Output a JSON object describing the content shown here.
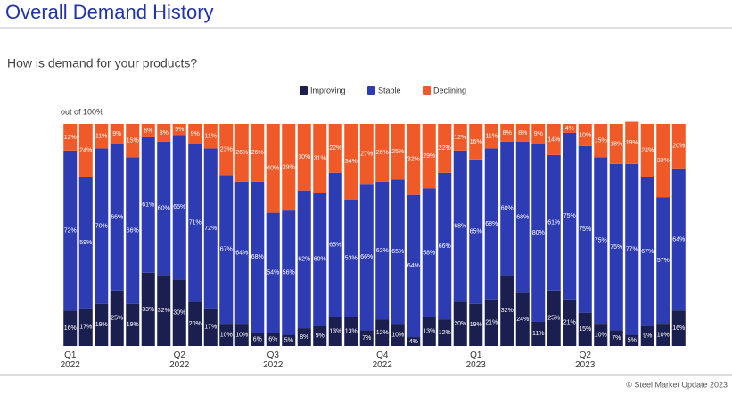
{
  "title": "Overall Demand History",
  "footer": "© Steel Market Update 2023",
  "chart_data": {
    "type": "stacked_bar",
    "title": "How is demand for your products?",
    "subtitle": "out of 100%",
    "ylim": [
      0,
      100
    ],
    "legend": "top",
    "categories": [
      "Q1\n2022",
      null,
      null,
      null,
      null,
      null,
      null,
      "Q2\n2022",
      null,
      null,
      null,
      null,
      null,
      "Q3\n2022",
      null,
      null,
      null,
      null,
      null,
      null,
      "Q4\n2022",
      null,
      null,
      null,
      null,
      null,
      "Q1\n2023",
      null,
      null,
      null,
      null,
      null,
      null,
      "Q2\n2023",
      null,
      null,
      null,
      null,
      null,
      null
    ],
    "series": [
      {
        "name": "Improving",
        "color": "#1b1f4f",
        "values": [
          16,
          17,
          19,
          25,
          19,
          33,
          32,
          30,
          20,
          17,
          10,
          10,
          6,
          6,
          5,
          8,
          9,
          13,
          13,
          7,
          12,
          10,
          4,
          13,
          12,
          20,
          19,
          21,
          32,
          24,
          11,
          25,
          21,
          15,
          10,
          7,
          5,
          9,
          10,
          16
        ],
        "value_labels": [
          "16%",
          "17%",
          "19%",
          "25%",
          "19%",
          "33%",
          "32%",
          "30%",
          "20%",
          "17%",
          "10%",
          "10%",
          "6%",
          "6%",
          "5%",
          "8%",
          "9%",
          "13%",
          "13%",
          "7%",
          "12%",
          "10%",
          "4%",
          "13%",
          "12%",
          "20%",
          "19%",
          "21%",
          "32%",
          "24%",
          "11%",
          "25%",
          "21%",
          "15%",
          "10%",
          "7%",
          "5%",
          "9%",
          "10%",
          "16%"
        ]
      },
      {
        "name": "Stable",
        "color": "#2e3cb4",
        "values": [
          72,
          59,
          70,
          66,
          66,
          61,
          60,
          65,
          71,
          72,
          67,
          64,
          68,
          54,
          56,
          62,
          60,
          65,
          53,
          66,
          62,
          65,
          64,
          58,
          66,
          68,
          65,
          68,
          60,
          68,
          80,
          61,
          75,
          75,
          75,
          75,
          77,
          67,
          57,
          64
        ],
        "value_labels": [
          "72%",
          "59%",
          "70%",
          "66%",
          "66%",
          "61%",
          "60%",
          "65%",
          "71%",
          "72%",
          "67%",
          "64%",
          "68%",
          "54%",
          "56%",
          "62%",
          "60%",
          "65%",
          "53%",
          "66%",
          "62%",
          "65%",
          "64%",
          "58%",
          "66%",
          "68%",
          "65%",
          "68%",
          "60%",
          "68%",
          "80%",
          "61%",
          "75%",
          "75%",
          "75%",
          "75%",
          "77%",
          "67%",
          "57%",
          "64%"
        ]
      },
      {
        "name": "Declining",
        "color": "#f05a28",
        "values": [
          12,
          24,
          11,
          9,
          15,
          6,
          8,
          5,
          9,
          11,
          23,
          26,
          26,
          40,
          39,
          30,
          31,
          22,
          34,
          27,
          26,
          25,
          32,
          29,
          22,
          12,
          16,
          11,
          8,
          8,
          9,
          14,
          4,
          10,
          15,
          18,
          19,
          24,
          33,
          20
        ],
        "value_labels": [
          "12%",
          "24%",
          "11%",
          "9%",
          "15%",
          "6%",
          "8%",
          "5%",
          "9%",
          "11%",
          "23%",
          "26%",
          "26%",
          "40%",
          "39%",
          "30%",
          "31%",
          "22%",
          "34%",
          "27%",
          "26%",
          "25%",
          "32%",
          "29%",
          "22%",
          "12%",
          "16%",
          "11%",
          "8%",
          "8%",
          "9%",
          "14%",
          "4%",
          "10%",
          "15%",
          "18%",
          "19%",
          "24%",
          "33%",
          "20%"
        ]
      }
    ]
  }
}
